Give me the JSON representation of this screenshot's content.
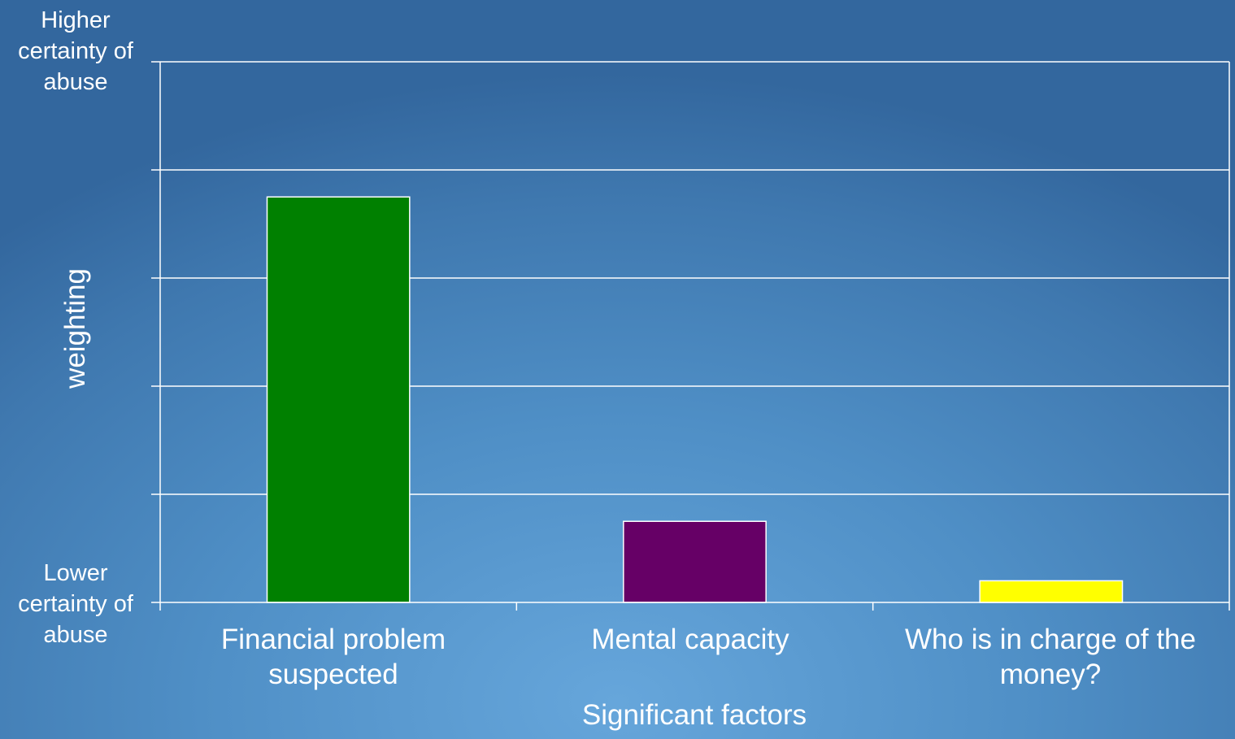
{
  "chart_data": {
    "type": "bar",
    "categories": [
      "Financial problem suspected",
      "Mental capacity",
      "Who is in charge of the money?"
    ],
    "values": [
      3.75,
      0.75,
      0.2
    ],
    "colors": [
      "#008000",
      "#660066",
      "#ffff00"
    ],
    "xlabel": "Significant factors",
    "ylabel": "weighting",
    "y_top_label": "Higher certainty of abuse",
    "y_bottom_label": "Lower certainty of abuse",
    "ylim": [
      0,
      5
    ],
    "y_ticks": [
      0,
      1,
      2,
      3,
      4,
      5
    ],
    "y_tick_labels_shown": false,
    "grid": true,
    "legend": "none"
  }
}
